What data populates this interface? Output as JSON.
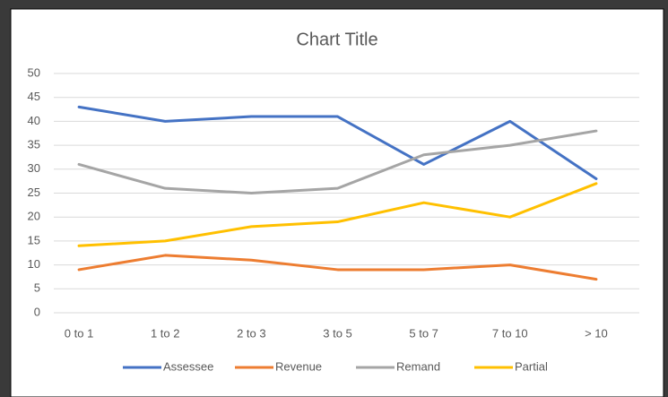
{
  "chart_data": {
    "type": "line",
    "title": "Chart Title",
    "categories": [
      "0 to 1",
      "1 to 2",
      "2 to 3",
      "3 to 5",
      "5 to 7",
      "7 to 10",
      "> 10"
    ],
    "series": [
      {
        "name": "Assessee",
        "color": "#4472c4",
        "values": [
          43,
          40,
          41,
          41,
          31,
          40,
          28
        ]
      },
      {
        "name": "Revenue",
        "color": "#ed7d31",
        "values": [
          9,
          12,
          11,
          9,
          9,
          10,
          7
        ]
      },
      {
        "name": "Remand",
        "color": "#a5a5a5",
        "values": [
          31,
          26,
          25,
          26,
          33,
          35,
          38
        ]
      },
      {
        "name": "Partial",
        "color": "#ffc000",
        "values": [
          14,
          15,
          18,
          19,
          23,
          20,
          27
        ]
      }
    ],
    "ylim": [
      0,
      50
    ],
    "yticks": [
      0,
      5,
      10,
      15,
      20,
      25,
      30,
      35,
      40,
      45,
      50
    ],
    "grid": true,
    "legend": "bottom"
  }
}
